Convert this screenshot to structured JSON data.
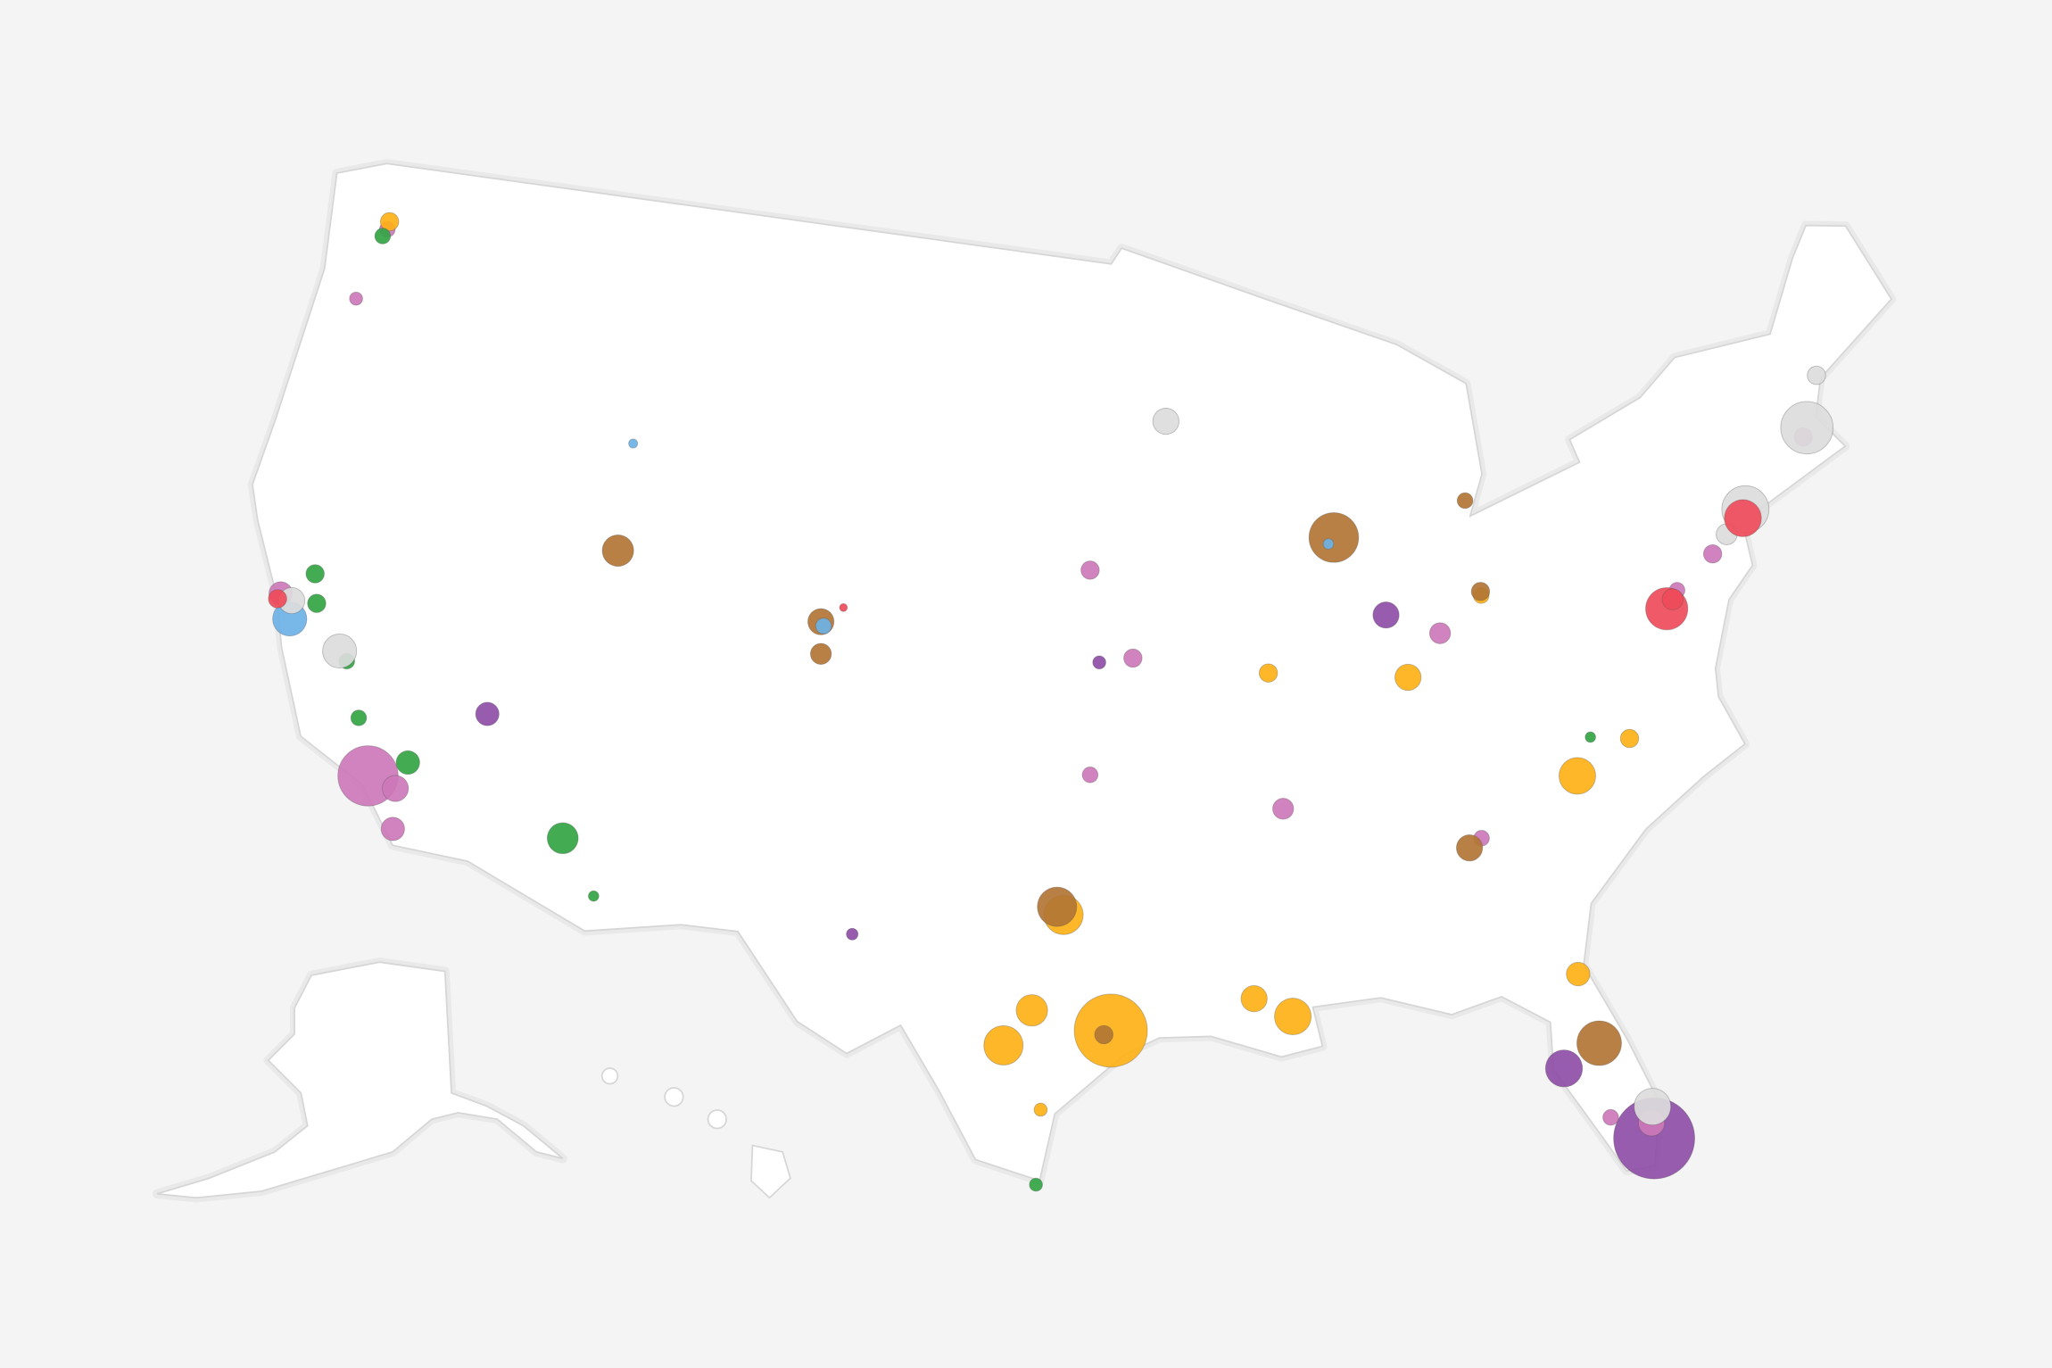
{
  "groups": [
    {
      "color": "#8e4ea6",
      "points": [
        {
          "lon": -80.3,
          "lat": 25.9,
          "value": 960
        },
        {
          "lon": -82.5,
          "lat": 28.0,
          "value": 200
        },
        {
          "lon": -86.2,
          "lat": 39.8,
          "value": 100
        },
        {
          "lon": -115.1,
          "lat": 36.2,
          "value": 80
        },
        {
          "lon": -95.7,
          "lat": 39.0,
          "value": 25
        },
        {
          "lon": -103.1,
          "lat": 32.0,
          "value": 20
        }
      ]
    },
    {
      "color": "#cc78b8",
      "points": [
        {
          "lon": -118.3,
          "lat": 34.05,
          "value": 530
        },
        {
          "lon": -117.4,
          "lat": 33.9,
          "value": 100
        },
        {
          "lon": -117.2,
          "lat": 32.9,
          "value": 80
        },
        {
          "lon": -122.4,
          "lat": 37.9,
          "value": 80
        },
        {
          "lon": -80.3,
          "lat": 26.3,
          "value": 100
        },
        {
          "lon": -84.5,
          "lat": 39.2,
          "value": 64
        },
        {
          "lon": -90.0,
          "lat": 35.2,
          "value": 64
        },
        {
          "lon": -94.6,
          "lat": 39.1,
          "value": 49
        },
        {
          "lon": -96.0,
          "lat": 36.2,
          "value": 36
        },
        {
          "lon": -75.2,
          "lat": 40.0,
          "value": 49
        },
        {
          "lon": -71.3,
          "lat": 42.3,
          "value": 49
        },
        {
          "lon": -76.6,
          "lat": 39.3,
          "value": 36
        },
        {
          "lon": -96.0,
          "lat": 41.3,
          "value": 49
        },
        {
          "lon": -122.3,
          "lat": 47.4,
          "value": 36
        },
        {
          "lon": -122.7,
          "lat": 45.5,
          "value": 25
        },
        {
          "lon": -84.0,
          "lat": 34.0,
          "value": 36
        },
        {
          "lon": -81.4,
          "lat": 26.6,
          "value": 36
        }
      ]
    },
    {
      "color": "#fdb117",
      "points": [
        {
          "lon": -95.4,
          "lat": 29.8,
          "value": 780
        },
        {
          "lon": -98.5,
          "lat": 29.4,
          "value": 225
        },
        {
          "lon": -97.7,
          "lat": 30.3,
          "value": 144
        },
        {
          "lon": -96.8,
          "lat": 32.7,
          "value": 225
        },
        {
          "lon": -90.1,
          "lat": 30.0,
          "value": 196
        },
        {
          "lon": -91.2,
          "lat": 30.5,
          "value": 100
        },
        {
          "lon": -80.8,
          "lat": 35.2,
          "value": 196
        },
        {
          "lon": -85.7,
          "lat": 38.2,
          "value": 100
        },
        {
          "lon": -81.7,
          "lat": 30.3,
          "value": 81
        },
        {
          "lon": -90.2,
          "lat": 38.6,
          "value": 49
        },
        {
          "lon": -122.3,
          "lat": 47.6,
          "value": 49
        },
        {
          "lon": -83.0,
          "lat": 40.0,
          "value": 36
        },
        {
          "lon": -97.4,
          "lat": 27.8,
          "value": 25
        },
        {
          "lon": -79.0,
          "lat": 35.9,
          "value": 49
        }
      ]
    },
    {
      "color": "#b27535",
      "points": [
        {
          "lon": -87.7,
          "lat": 41.85,
          "value": 360
        },
        {
          "lon": -81.4,
          "lat": 28.5,
          "value": 290
        },
        {
          "lon": -97.0,
          "lat": 32.9,
          "value": 225
        },
        {
          "lon": -111.9,
          "lat": 40.8,
          "value": 144
        },
        {
          "lon": -104.9,
          "lat": 39.7,
          "value": 100
        },
        {
          "lon": -84.4,
          "lat": 33.8,
          "value": 100
        },
        {
          "lon": -83.0,
          "lat": 40.1,
          "value": 49
        },
        {
          "lon": -83.1,
          "lat": 42.4,
          "value": 36
        },
        {
          "lon": -95.6,
          "lat": 29.7,
          "value": 49
        },
        {
          "lon": -104.8,
          "lat": 38.9,
          "value": 64
        }
      ]
    },
    {
      "color": "#33a544",
      "points": [
        {
          "lon": -112.1,
          "lat": 33.5,
          "value": 140
        },
        {
          "lon": -121.5,
          "lat": 38.6,
          "value": 49
        },
        {
          "lon": -119.8,
          "lat": 36.7,
          "value": 36
        },
        {
          "lon": -119.0,
          "lat": 35.4,
          "value": 36
        },
        {
          "lon": -117.2,
          "lat": 34.6,
          "value": 81
        },
        {
          "lon": -122.4,
          "lat": 47.2,
          "value": 36
        },
        {
          "lon": -110.9,
          "lat": 32.2,
          "value": 16
        },
        {
          "lon": -97.5,
          "lat": 25.9,
          "value": 25
        },
        {
          "lon": -121.2,
          "lat": 37.9,
          "value": 49
        },
        {
          "lon": -80.2,
          "lat": 36.1,
          "value": 16
        }
      ]
    },
    {
      "color": "#6db2e6",
      "points": [
        {
          "lon": -121.9,
          "lat": 37.35,
          "value": 170
        },
        {
          "lon": -104.8,
          "lat": 39.6,
          "value": 36
        },
        {
          "lon": -87.9,
          "lat": 41.7,
          "value": 16
        },
        {
          "lon": -112.0,
          "lat": 43.5,
          "value": 12
        }
      ]
    },
    {
      "color": "#dcdcdc",
      "points": [
        {
          "lon": -71.1,
          "lat": 42.5,
          "value": 400
        },
        {
          "lon": -73.8,
          "lat": 40.9,
          "value": 324
        },
        {
          "lon": -80.2,
          "lat": 26.7,
          "value": 196
        },
        {
          "lon": -120.1,
          "lat": 36.9,
          "value": 169
        },
        {
          "lon": -122.0,
          "lat": 37.8,
          "value": 100
        },
        {
          "lon": -93.3,
          "lat": 45.0,
          "value": 100
        },
        {
          "lon": -70.3,
          "lat": 43.7,
          "value": 49
        },
        {
          "lon": -74.6,
          "lat": 40.4,
          "value": 64
        }
      ]
    },
    {
      "color": "#ef4b5a",
      "points": [
        {
          "lon": -73.95,
          "lat": 40.7,
          "value": 200
        },
        {
          "lon": -77.05,
          "lat": 38.9,
          "value": 260
        },
        {
          "lon": -122.45,
          "lat": 37.75,
          "value": 49
        },
        {
          "lon": -76.8,
          "lat": 39.1,
          "value": 64
        },
        {
          "lon": -104.2,
          "lat": 40.1,
          "value": 9
        }
      ]
    }
  ]
}
